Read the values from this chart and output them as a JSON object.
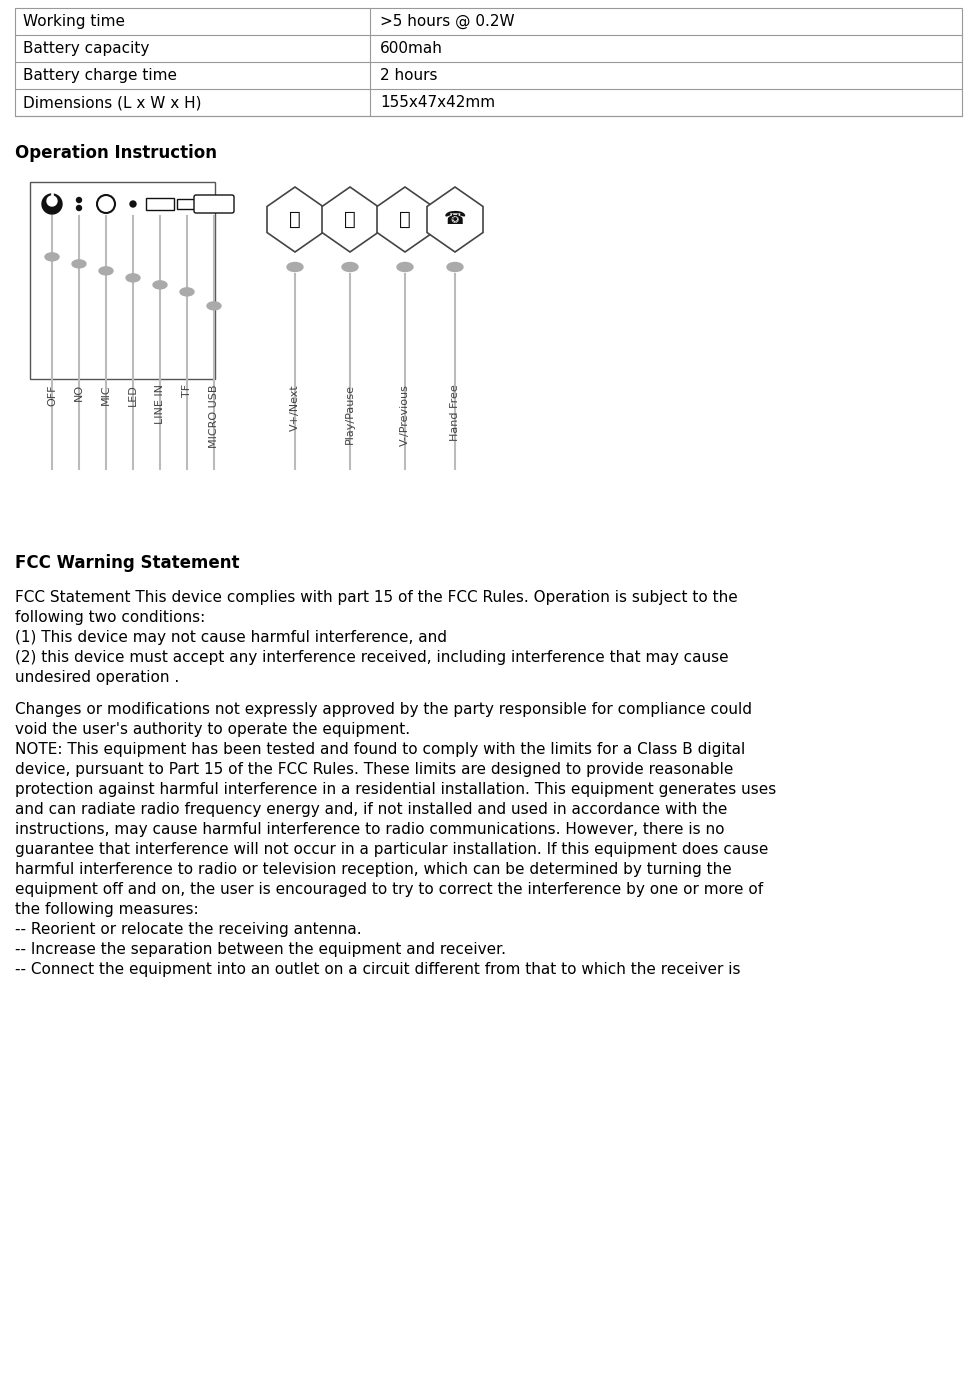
{
  "table_rows": [
    [
      "Working time",
      ">5 hours @ 0.2W"
    ],
    [
      "Battery capacity",
      "600mah"
    ],
    [
      "Battery charge time",
      "2 hours"
    ],
    [
      "Dimensions (L x W x H)",
      "155x47x42mm"
    ]
  ],
  "operation_instruction_label": "Operation Instruction",
  "fcc_warning_label": "FCC Warning Statement",
  "left_labels": [
    "OFF",
    "NO",
    "MIC",
    "LED",
    "LINE IN",
    "TF",
    "MICRO USB"
  ],
  "right_labels": [
    "V+/Next",
    "Play/Pause",
    "V-/Previous",
    "Hand Free"
  ],
  "bg_color": "#ffffff",
  "text_color": "#000000",
  "table_border_color": "#999999",
  "para1_line1": "FCC Statement This device complies with part 15 of the FCC Rules. Operation is subject to the",
  "para1_line2": "following two conditions:",
  "item1": "(1) This device may not cause harmful interference, and",
  "item2_line1": "(2) this device must accept any interference received, including interference that may cause",
  "item2_line2": "undesired operation .",
  "para2_line1": "Changes or modifications not expressly approved by the party responsible for compliance could",
  "para2_line2": "void the user's authority to operate the equipment.",
  "para3_lines": [
    "NOTE: This equipment has been tested and found to comply with the limits for a Class B digital",
    "device, pursuant to Part 15 of the FCC Rules. These limits are designed to provide reasonable",
    "protection against harmful interference in a residential installation. This equipment generates uses",
    "and can radiate radio frequency energy and, if not installed and used in accordance with the",
    "instructions, may cause harmful interference to radio communications. However, there is no",
    "guarantee that interference will not occur in a particular installation. If this equipment does cause",
    "harmful interference to radio or television reception, which can be determined by turning the",
    "equipment off and on, the user is encouraged to try to correct the interference by one or more of",
    "the following measures:"
  ],
  "bullet1": "-- Reorient or relocate the receiving antenna.",
  "bullet2": "-- Increase the separation between the equipment and receiver.",
  "bullet3": "-- Connect the equipment into an outlet on a circuit different from that to which the receiver is"
}
